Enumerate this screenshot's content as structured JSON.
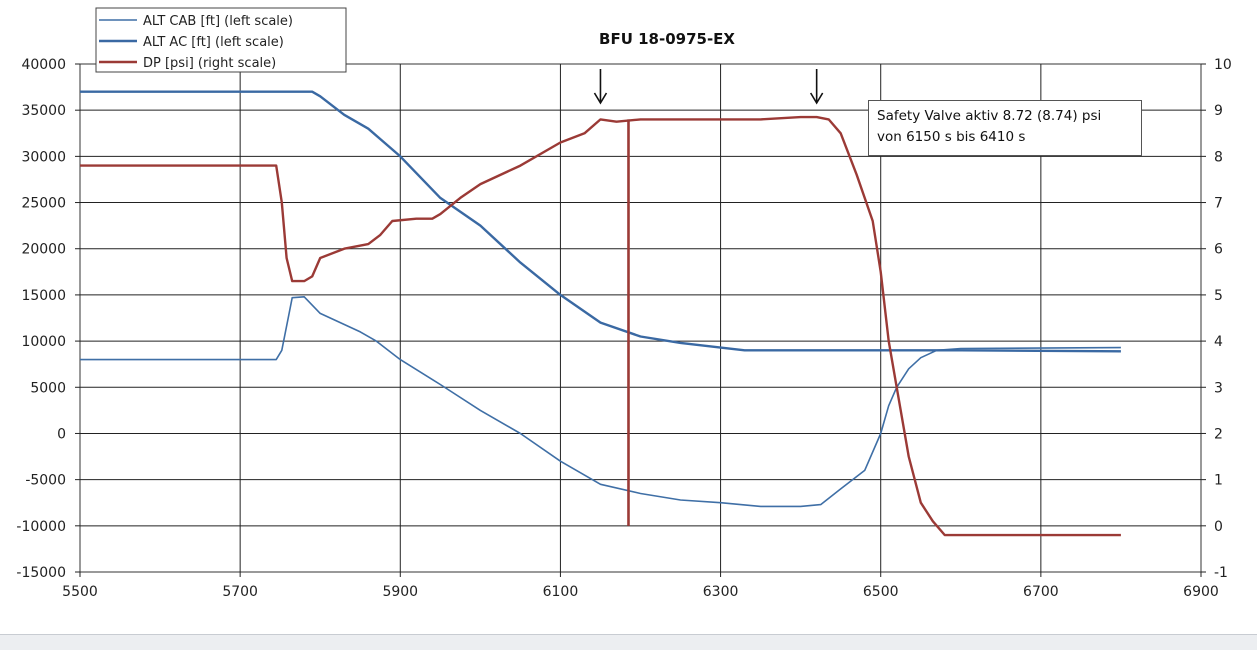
{
  "chart_data": {
    "type": "line",
    "title": "BFU 18-0975-EX",
    "xlabel": "",
    "ylabel_left": "",
    "ylabel_right": "",
    "xlim": [
      5500,
      6900
    ],
    "ylim_left": [
      -15000,
      40000
    ],
    "ylim_right": [
      -1,
      10
    ],
    "grid": true,
    "legend_position": "top-left",
    "x_ticks": [
      5500,
      5700,
      5900,
      6100,
      6300,
      6500,
      6700,
      6900
    ],
    "y_left_ticks": [
      40000,
      35000,
      30000,
      25000,
      20000,
      15000,
      10000,
      5000,
      0,
      -5000,
      -10000,
      -15000
    ],
    "y_right_ticks": [
      10,
      9,
      8,
      7,
      6,
      5,
      4,
      3,
      2,
      1,
      0,
      -1
    ],
    "series": [
      {
        "name": "ALT CAB [ft] (left scale)",
        "axis": "left",
        "color": "#3f6fa6",
        "width": 1.6,
        "x": [
          5500,
          5745,
          5752,
          5760,
          5765,
          5780,
          5800,
          5850,
          5870,
          5900,
          5950,
          6000,
          6050,
          6100,
          6150,
          6200,
          6250,
          6300,
          6350,
          6400,
          6425,
          6450,
          6480,
          6500,
          6510,
          6520,
          6535,
          6550,
          6570,
          6600,
          6800
        ],
        "values": [
          8000,
          8000,
          9000,
          12500,
          14700,
          14800,
          13000,
          11000,
          10000,
          8000,
          5300,
          2500,
          0,
          -3000,
          -5500,
          -6500,
          -7200,
          -7500,
          -7900,
          -7900,
          -7700,
          -6000,
          -4000,
          0,
          3000,
          5000,
          7000,
          8200,
          9000,
          9200,
          9300
        ]
      },
      {
        "name": "ALT AC [ft] (left scale)",
        "axis": "left",
        "color": "#3a69a3",
        "width": 2.4,
        "x": [
          5500,
          5790,
          5800,
          5830,
          5860,
          5900,
          5950,
          6000,
          6050,
          6100,
          6150,
          6200,
          6250,
          6300,
          6330,
          6400,
          6600,
          6800
        ],
        "values": [
          37000,
          37000,
          36500,
          34500,
          33000,
          30000,
          25500,
          22500,
          18500,
          15000,
          12000,
          10500,
          9800,
          9300,
          9000,
          9000,
          9000,
          8900
        ]
      },
      {
        "name": "DP [psi] (right scale)",
        "axis": "right",
        "color": "#9b3a36",
        "width": 2.4,
        "x": [
          5500,
          5745,
          5752,
          5758,
          5765,
          5780,
          5790,
          5800,
          5830,
          5860,
          5875,
          5890,
          5920,
          5940,
          5950,
          5975,
          6000,
          6050,
          6100,
          6130,
          6150,
          6170,
          6200,
          6300,
          6350,
          6400,
          6420,
          6435,
          6450,
          6470,
          6490,
          6500,
          6510,
          6520,
          6535,
          6550,
          6565,
          6580,
          6650,
          6800
        ],
        "values": [
          7.8,
          7.8,
          7.0,
          5.8,
          5.3,
          5.3,
          5.4,
          5.8,
          6.0,
          6.1,
          6.3,
          6.6,
          6.65,
          6.65,
          6.75,
          7.1,
          7.4,
          7.8,
          8.3,
          8.5,
          8.8,
          8.75,
          8.8,
          8.8,
          8.8,
          8.85,
          8.85,
          8.8,
          8.5,
          7.6,
          6.6,
          5.5,
          4.0,
          3.0,
          1.5,
          0.5,
          0.1,
          -0.2,
          -0.2,
          -0.2
        ]
      }
    ],
    "annotations": [
      {
        "type": "arrow",
        "x": 6150,
        "label": ""
      },
      {
        "type": "arrow",
        "x": 6420,
        "label": ""
      },
      {
        "type": "vertical_line",
        "x": 6185,
        "y_right_from": 0,
        "y_right_to": 8.8,
        "color": "#9b3a36"
      },
      {
        "type": "textbox",
        "lines": [
          "Safety Valve aktiv 8.72 (8.74) psi",
          "von 6150 s bis 6410 s"
        ]
      }
    ]
  },
  "note": {
    "line1": "Safety Valve aktiv 8.72 (8.74) psi",
    "line2": "von 6150 s bis 6410 s"
  },
  "legend": [
    {
      "label": "ALT CAB [ft] (left scale)",
      "color": "#3f6fa6",
      "width": 1.6
    },
    {
      "label": "ALT AC [ft] (left scale)",
      "color": "#3a69a3",
      "width": 2.6
    },
    {
      "label": "DP [psi] (right scale)",
      "color": "#9b3a36",
      "width": 2.6
    }
  ]
}
